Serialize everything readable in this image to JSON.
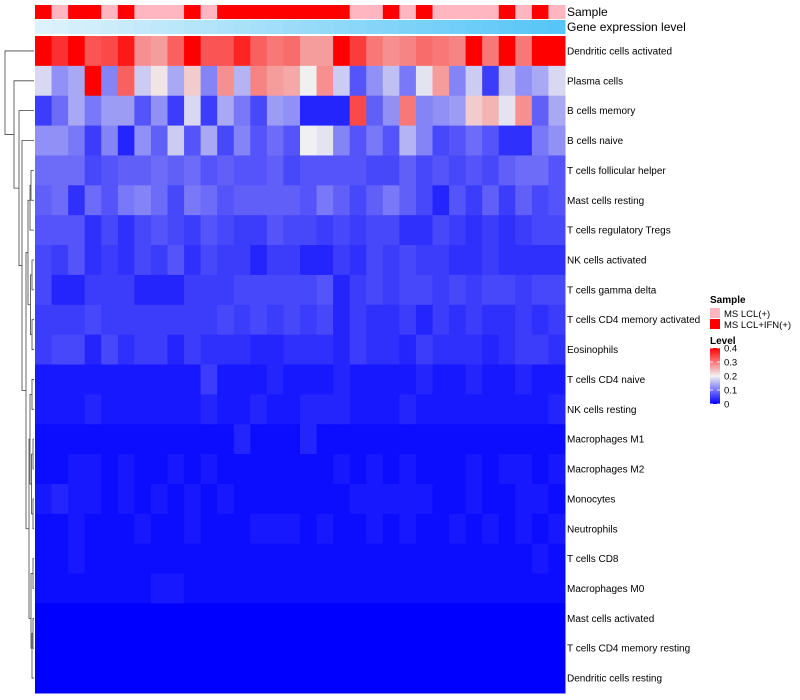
{
  "chart_data": {
    "type": "heatmap",
    "annotation_labels": {
      "sample": "Sample",
      "expression": "Gene expression level"
    },
    "row_labels": [
      "Dendritic cells activated",
      "Plasma cells",
      "B cells memory",
      "B cells naive",
      "T cells follicular helper",
      "Mast cells resting",
      "T cells regulatory  Tregs",
      "NK cells activated",
      "T cells gamma delta",
      "T cells CD4 memory activated",
      "Eosinophils",
      "T cells CD4 naive",
      "NK cells resting",
      "Macrophages M1",
      "Macrophages M2",
      "Monocytes",
      "Neutrophils",
      "T cells CD8",
      "Macrophages M0",
      "Mast cells activated",
      "T cells CD4 memory resting",
      "Dendritic cells resting"
    ],
    "sample_groups": [
      1,
      0,
      1,
      1,
      0,
      1,
      0,
      0,
      0,
      1,
      0,
      1,
      1,
      1,
      1,
      1,
      1,
      1,
      1,
      0,
      0,
      1,
      0,
      1,
      0,
      0,
      0,
      0,
      1,
      0,
      1,
      0
    ],
    "expression_gradient": [
      0.02,
      0.05,
      0.08,
      0.11,
      0.14,
      0.17,
      0.2,
      0.23,
      0.26,
      0.29,
      0.32,
      0.35,
      0.38,
      0.41,
      0.44,
      0.47,
      0.5,
      0.53,
      0.56,
      0.59,
      0.62,
      0.65,
      0.68,
      0.71,
      0.74,
      0.77,
      0.8,
      0.83,
      0.86,
      0.89,
      0.92,
      0.95
    ],
    "values": [
      [
        0.42,
        0.36,
        0.42,
        0.33,
        0.34,
        0.38,
        0.28,
        0.27,
        0.32,
        0.4,
        0.33,
        0.33,
        0.37,
        0.32,
        0.3,
        0.31,
        0.27,
        0.27,
        0.4,
        0.35,
        0.3,
        0.28,
        0.29,
        0.31,
        0.3,
        0.29,
        0.4,
        0.3,
        0.4,
        0.3,
        0.4,
        0.42
      ],
      [
        0.18,
        0.12,
        0.14,
        0.4,
        0.11,
        0.32,
        0.17,
        0.21,
        0.14,
        0.23,
        0.11,
        0.28,
        0.15,
        0.29,
        0.27,
        0.26,
        0.2,
        0.28,
        0.17,
        0.07,
        0.12,
        0.16,
        0.1,
        0.19,
        0.27,
        0.11,
        0.17,
        0.05,
        0.16,
        0.12,
        0.14,
        0.18
      ],
      [
        0.05,
        0.09,
        0.14,
        0.1,
        0.13,
        0.13,
        0.07,
        0.12,
        0.05,
        0.18,
        0.05,
        0.14,
        0.1,
        0.06,
        0.13,
        0.12,
        0.03,
        0.03,
        0.03,
        0.34,
        0.08,
        0.12,
        0.3,
        0.11,
        0.12,
        0.13,
        0.23,
        0.25,
        0.19,
        0.28,
        0.08,
        0.14
      ],
      [
        0.12,
        0.12,
        0.1,
        0.05,
        0.11,
        0.03,
        0.12,
        0.08,
        0.17,
        0.07,
        0.14,
        0.06,
        0.11,
        0.07,
        0.09,
        0.07,
        0.2,
        0.19,
        0.11,
        0.07,
        0.1,
        0.07,
        0.15,
        0.11,
        0.06,
        0.07,
        0.09,
        0.07,
        0.04,
        0.04,
        0.1,
        0.12
      ],
      [
        0.09,
        0.09,
        0.09,
        0.06,
        0.07,
        0.08,
        0.08,
        0.09,
        0.08,
        0.09,
        0.07,
        0.08,
        0.07,
        0.07,
        0.08,
        0.06,
        0.07,
        0.07,
        0.07,
        0.07,
        0.06,
        0.06,
        0.08,
        0.06,
        0.07,
        0.06,
        0.07,
        0.06,
        0.08,
        0.09,
        0.09,
        0.07
      ],
      [
        0.08,
        0.09,
        0.04,
        0.09,
        0.07,
        0.1,
        0.11,
        0.09,
        0.06,
        0.1,
        0.09,
        0.07,
        0.08,
        0.08,
        0.08,
        0.08,
        0.07,
        0.1,
        0.08,
        0.06,
        0.08,
        0.1,
        0.08,
        0.06,
        0.03,
        0.07,
        0.05,
        0.08,
        0.05,
        0.08,
        0.06,
        0.07
      ],
      [
        0.07,
        0.07,
        0.07,
        0.04,
        0.06,
        0.04,
        0.06,
        0.07,
        0.06,
        0.05,
        0.07,
        0.06,
        0.05,
        0.05,
        0.07,
        0.06,
        0.06,
        0.05,
        0.06,
        0.05,
        0.06,
        0.06,
        0.04,
        0.04,
        0.06,
        0.05,
        0.04,
        0.05,
        0.04,
        0.05,
        0.06,
        0.06
      ],
      [
        0.06,
        0.05,
        0.07,
        0.04,
        0.05,
        0.04,
        0.06,
        0.05,
        0.07,
        0.04,
        0.06,
        0.05,
        0.05,
        0.03,
        0.05,
        0.05,
        0.03,
        0.03,
        0.05,
        0.04,
        0.06,
        0.05,
        0.06,
        0.05,
        0.05,
        0.04,
        0.04,
        0.05,
        0.04,
        0.04,
        0.04,
        0.04
      ],
      [
        0.06,
        0.03,
        0.03,
        0.05,
        0.05,
        0.05,
        0.03,
        0.03,
        0.03,
        0.05,
        0.05,
        0.05,
        0.06,
        0.06,
        0.06,
        0.06,
        0.06,
        0.07,
        0.03,
        0.05,
        0.06,
        0.05,
        0.06,
        0.06,
        0.05,
        0.06,
        0.05,
        0.06,
        0.06,
        0.05,
        0.06,
        0.06
      ],
      [
        0.05,
        0.05,
        0.05,
        0.06,
        0.05,
        0.05,
        0.05,
        0.05,
        0.05,
        0.05,
        0.05,
        0.06,
        0.05,
        0.06,
        0.05,
        0.06,
        0.05,
        0.06,
        0.03,
        0.05,
        0.04,
        0.04,
        0.05,
        0.03,
        0.05,
        0.04,
        0.05,
        0.04,
        0.04,
        0.05,
        0.04,
        0.05
      ],
      [
        0.05,
        0.06,
        0.06,
        0.03,
        0.06,
        0.04,
        0.05,
        0.05,
        0.03,
        0.05,
        0.04,
        0.04,
        0.04,
        0.03,
        0.03,
        0.04,
        0.04,
        0.04,
        0.03,
        0.05,
        0.04,
        0.04,
        0.03,
        0.05,
        0.04,
        0.04,
        0.04,
        0.03,
        0.04,
        0.05,
        0.05,
        0.04
      ],
      [
        0.02,
        0.02,
        0.02,
        0.02,
        0.02,
        0.02,
        0.02,
        0.02,
        0.02,
        0.02,
        0.05,
        0.02,
        0.02,
        0.02,
        0.03,
        0.02,
        0.02,
        0.02,
        0.03,
        0.02,
        0.02,
        0.02,
        0.02,
        0.03,
        0.02,
        0.02,
        0.03,
        0.02,
        0.02,
        0.03,
        0.02,
        0.02
      ],
      [
        0.02,
        0.02,
        0.02,
        0.03,
        0.02,
        0.02,
        0.02,
        0.02,
        0.02,
        0.02,
        0.03,
        0.02,
        0.02,
        0.03,
        0.02,
        0.02,
        0.03,
        0.03,
        0.03,
        0.02,
        0.02,
        0.02,
        0.03,
        0.02,
        0.02,
        0.02,
        0.02,
        0.02,
        0.02,
        0.02,
        0.02,
        0.03
      ],
      [
        0.01,
        0.01,
        0.01,
        0.01,
        0.01,
        0.01,
        0.01,
        0.01,
        0.01,
        0.01,
        0.01,
        0.01,
        0.03,
        0.01,
        0.01,
        0.01,
        0.03,
        0.01,
        0.01,
        0.01,
        0.01,
        0.01,
        0.01,
        0.01,
        0.01,
        0.01,
        0.01,
        0.01,
        0.01,
        0.01,
        0.01,
        0.01
      ],
      [
        0.01,
        0.01,
        0.02,
        0.02,
        0.01,
        0.02,
        0.01,
        0.01,
        0.02,
        0.01,
        0.02,
        0.01,
        0.01,
        0.01,
        0.01,
        0.01,
        0.01,
        0.01,
        0.02,
        0.01,
        0.02,
        0.01,
        0.02,
        0.01,
        0.01,
        0.01,
        0.02,
        0.01,
        0.02,
        0.02,
        0.01,
        0.02
      ],
      [
        0.02,
        0.03,
        0.02,
        0.02,
        0.01,
        0.02,
        0.01,
        0.02,
        0.01,
        0.02,
        0.01,
        0.02,
        0.01,
        0.01,
        0.01,
        0.01,
        0.01,
        0.01,
        0.01,
        0.02,
        0.02,
        0.02,
        0.02,
        0.02,
        0.01,
        0.01,
        0.02,
        0.01,
        0.01,
        0.02,
        0.02,
        0.01
      ],
      [
        0.01,
        0.01,
        0.02,
        0.01,
        0.01,
        0.01,
        0.02,
        0.01,
        0.01,
        0.02,
        0.01,
        0.01,
        0.01,
        0.02,
        0.02,
        0.02,
        0.01,
        0.02,
        0.01,
        0.01,
        0.02,
        0.01,
        0.02,
        0.01,
        0.01,
        0.02,
        0.01,
        0.02,
        0.01,
        0.02,
        0.01,
        0.02
      ],
      [
        0.01,
        0.01,
        0.02,
        0.01,
        0.01,
        0.01,
        0.01,
        0.01,
        0.01,
        0.01,
        0.01,
        0.01,
        0.01,
        0.01,
        0.01,
        0.01,
        0.01,
        0.01,
        0.01,
        0.01,
        0.01,
        0.01,
        0.01,
        0.01,
        0.01,
        0.01,
        0.01,
        0.01,
        0.01,
        0.01,
        0.02,
        0.01
      ],
      [
        0.01,
        0.01,
        0.01,
        0.01,
        0.01,
        0.01,
        0.01,
        0.02,
        0.02,
        0.01,
        0.01,
        0.01,
        0.01,
        0.01,
        0.01,
        0.01,
        0.01,
        0.01,
        0.01,
        0.01,
        0.01,
        0.01,
        0.01,
        0.01,
        0.01,
        0.01,
        0.01,
        0.01,
        0.01,
        0.01,
        0.01,
        0.01
      ],
      [
        0,
        0,
        0,
        0,
        0,
        0,
        0,
        0,
        0,
        0,
        0,
        0,
        0,
        0,
        0,
        0,
        0,
        0,
        0,
        0,
        0,
        0,
        0,
        0,
        0,
        0,
        0,
        0,
        0,
        0,
        0,
        0
      ],
      [
        0,
        0,
        0,
        0,
        0,
        0,
        0,
        0,
        0,
        0,
        0,
        0,
        0,
        0,
        0,
        0,
        0,
        0,
        0,
        0,
        0,
        0,
        0,
        0,
        0,
        0,
        0,
        0,
        0,
        0,
        0,
        0
      ],
      [
        0,
        0,
        0,
        0,
        0,
        0,
        0,
        0,
        0,
        0,
        0,
        0,
        0,
        0,
        0,
        0,
        0,
        0,
        0,
        0,
        0,
        0,
        0,
        0,
        0,
        0,
        0,
        0,
        0,
        0,
        0,
        0
      ]
    ],
    "legend": {
      "sample": {
        "title": "Sample",
        "items": [
          {
            "label": "MS LCL(+)",
            "color": "#ffb6c1"
          },
          {
            "label": "MS LCL+IFN(+)",
            "color": "#ff0000"
          }
        ]
      },
      "level": {
        "title": "Level",
        "ticks": [
          0,
          0.1,
          0.2,
          0.3,
          0.4
        ],
        "tick_labels": [
          "0",
          "0.1",
          "0.2",
          "0.3",
          "0.4"
        ],
        "range": [
          0,
          0.4
        ]
      },
      "placement": "right"
    },
    "dendrogram": "rows",
    "colors": {
      "low": "#0000ff",
      "mid": "#f0f0f0",
      "high": "#ff0000",
      "annotation_light": "#e0f3fb",
      "annotation_dark": "#4fc3f7"
    }
  }
}
